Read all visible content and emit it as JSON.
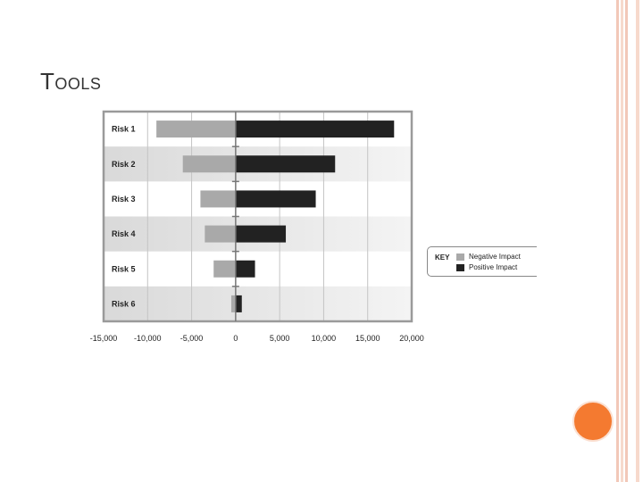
{
  "title": "Tools",
  "chart_data": {
    "type": "bar",
    "orientation": "horizontal",
    "categories": [
      "Risk 1",
      "Risk 2",
      "Risk 3",
      "Risk 4",
      "Risk 5",
      "Risk 6"
    ],
    "series": [
      {
        "name": "Negative Impact",
        "color": "#a9a9a9",
        "values": [
          -9000,
          -6000,
          -4000,
          -3500,
          -2500,
          -500
        ]
      },
      {
        "name": "Positive Impact",
        "color": "#222222",
        "values": [
          18000,
          11300,
          9100,
          5700,
          2200,
          700
        ]
      }
    ],
    "xlim": [
      -15000,
      20000
    ],
    "xticks": [
      -15000,
      -10000,
      -5000,
      0,
      5000,
      10000,
      15000,
      20000
    ],
    "xtick_labels": [
      "-15,000",
      "-10,000",
      "-5,000",
      "0",
      "5,000",
      "10,000",
      "15,000",
      "20,000"
    ],
    "grid": true,
    "legend_position": "right",
    "legend_title": "KEY"
  }
}
